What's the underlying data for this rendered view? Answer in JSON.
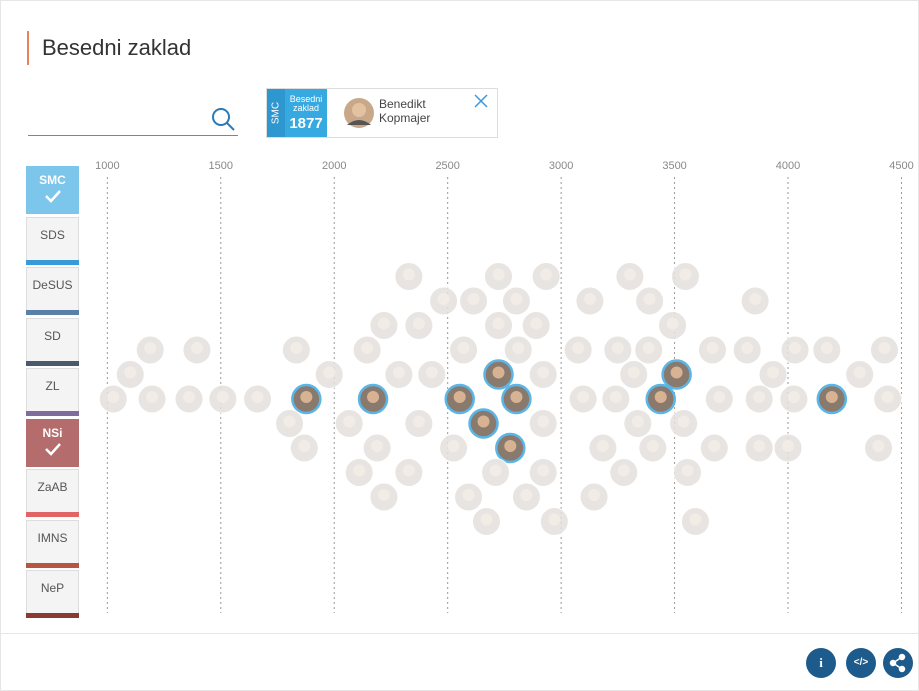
{
  "header": {
    "title": "Besedni zaklad"
  },
  "selection": {
    "party": "SMC",
    "metric": "Besedni zaklad",
    "value": 1877,
    "name": "Benedikt Kopmajer"
  },
  "parties": [
    {
      "name": "SMC",
      "color": "#7cc5eb",
      "selected": true
    },
    {
      "name": "SDS",
      "color": "#3a9ad9",
      "selected": false
    },
    {
      "name": "DeSUS",
      "color": "#5a80a8",
      "selected": false
    },
    {
      "name": "SD",
      "color": "#4a5a6e",
      "selected": false
    },
    {
      "name": "ZL",
      "color": "#7d6c9c",
      "selected": false
    },
    {
      "name": "NSi",
      "color": "#b46c6c",
      "selected": true
    },
    {
      "name": "ZaAB",
      "color": "#e06666",
      "selected": false
    },
    {
      "name": "IMNS",
      "color": "#b85442",
      "selected": false
    },
    {
      "name": "NeP",
      "color": "#8a3a30",
      "selected": false
    }
  ],
  "chart_data": {
    "type": "beeswarm",
    "xlim": [
      950,
      4520
    ],
    "xticks": [
      1000,
      1500,
      2000,
      2500,
      3000,
      3500,
      4000,
      4500
    ],
    "grid": true,
    "series": [
      {
        "color": "#5bb5e5",
        "x": [
          1877,
          2553,
          2803,
          3439,
          3509,
          4193,
          2724,
          2658,
          2776,
          2171
        ]
      },
      {
        "color": "#d9d9d9",
        "x": [
          1026,
          1197,
          1360,
          1509,
          1662,
          1833,
          1978,
          2145,
          2285,
          2430,
          2570,
          2724,
          2921,
          3097,
          3241,
          3386,
          3540,
          3697,
          3873,
          4026,
          4171,
          4316,
          4439,
          1101,
          1395,
          2189,
          2373,
          3075,
          3320,
          3667,
          3820,
          4031,
          4425,
          1189,
          1803,
          2066,
          2219,
          2373,
          2526,
          2921,
          3250,
          3404,
          1868,
          2329,
          2482,
          2811,
          3184,
          3338,
          3491,
          2890,
          2711,
          3557,
          3873,
          4000,
          2219,
          2614,
          2921,
          2803,
          2110,
          2329,
          2671,
          3390,
          3675,
          3855,
          3934,
          4399,
          2592,
          2934,
          3127,
          3276,
          3548,
          2724,
          2970,
          3145,
          3303,
          2847,
          3592
        ]
      }
    ]
  },
  "toolbar": {
    "info": "i",
    "embed": "</>"
  }
}
